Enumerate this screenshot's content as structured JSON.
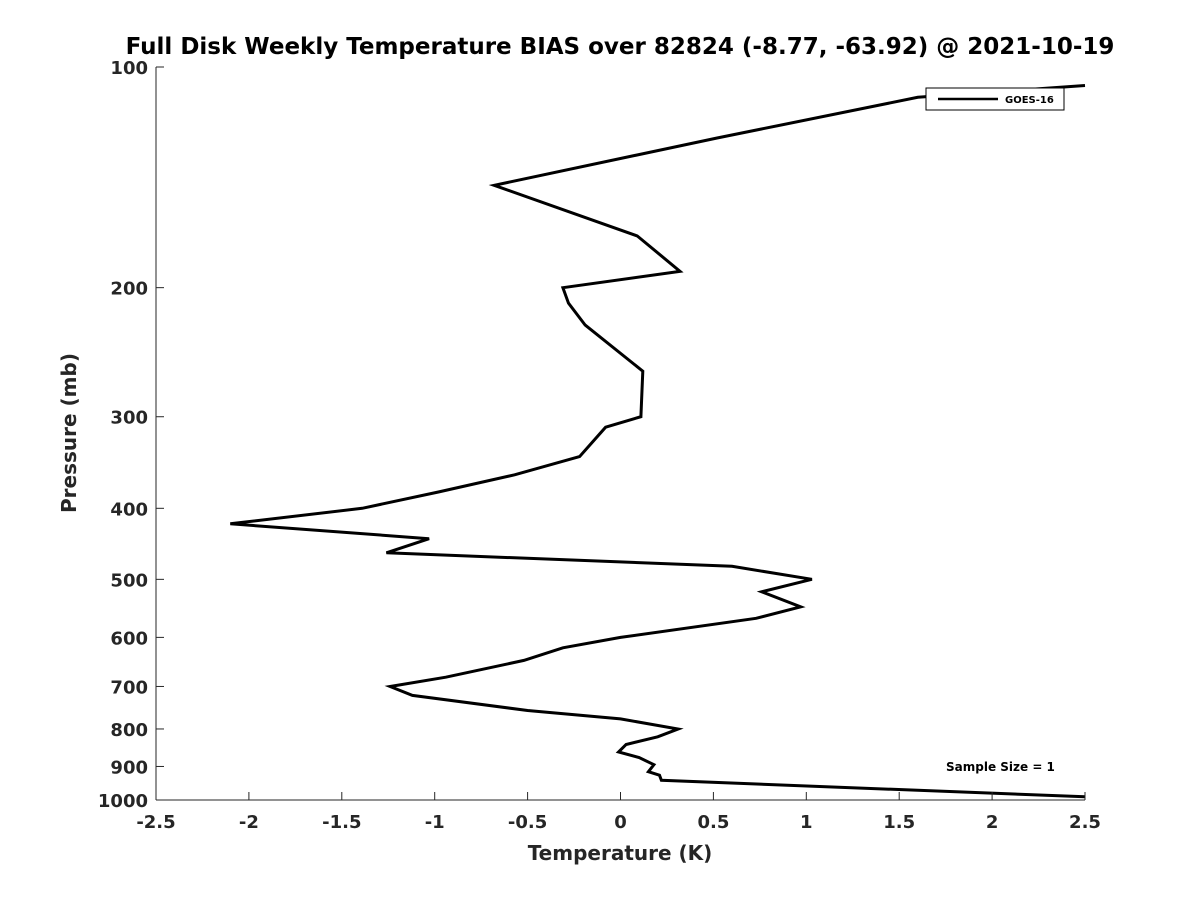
{
  "chart_data": {
    "type": "line",
    "title": "Full Disk Weekly Temperature BIAS over 82824 (-8.77, -63.92) @ 2021-10-19",
    "xlabel": "Temperature (K)",
    "ylabel": "Pressure (mb)",
    "xlim": [
      -2.5,
      2.5
    ],
    "ylim": [
      1000,
      100
    ],
    "yscale": "log",
    "y_reversed": true,
    "xticks": [
      -2.5,
      -2,
      -1.5,
      -1,
      -0.5,
      0,
      0.5,
      1,
      1.5,
      2,
      2.5
    ],
    "xtick_labels": [
      "-2.5",
      "-2",
      "-1.5",
      "-1",
      "-0.5",
      "0",
      "0.5",
      "1",
      "1.5",
      "2",
      "2.5"
    ],
    "yticks": [
      100,
      200,
      300,
      400,
      500,
      600,
      700,
      800,
      900,
      1000
    ],
    "ytick_labels": [
      "100",
      "200",
      "300",
      "400",
      "500",
      "600",
      "700",
      "800",
      "900",
      "1000"
    ],
    "grid": false,
    "legend_position": "top-right",
    "series": [
      {
        "name": "GOES-16",
        "color": "#000000",
        "x": [
          2.5,
          1.6,
          0.52,
          -0.68,
          0.09,
          0.32,
          -0.31,
          -0.28,
          -0.19,
          0.12,
          0.11,
          -0.08,
          -0.22,
          -0.57,
          -0.98,
          -1.39,
          -2.1,
          -1.03,
          -1.26,
          0.6,
          1.03,
          0.76,
          0.97,
          0.73,
          0.0,
          -0.31,
          -0.52,
          -0.94,
          -1.24,
          -1.12,
          -0.5,
          0.0,
          0.31,
          0.2,
          0.03,
          -0.01,
          0.1,
          0.18,
          0.15,
          0.21,
          0.22,
          2.5
        ],
        "y": [
          106,
          110,
          125,
          145,
          170,
          190,
          200,
          210,
          225,
          260,
          300,
          310,
          340,
          360,
          380,
          400,
          420,
          440,
          460,
          480,
          500,
          520,
          545,
          565,
          600,
          620,
          645,
          680,
          700,
          720,
          755,
          775,
          800,
          820,
          840,
          860,
          875,
          895,
          915,
          925,
          940,
          990
        ]
      }
    ],
    "annotations": [
      "Sample Size = 1"
    ]
  }
}
